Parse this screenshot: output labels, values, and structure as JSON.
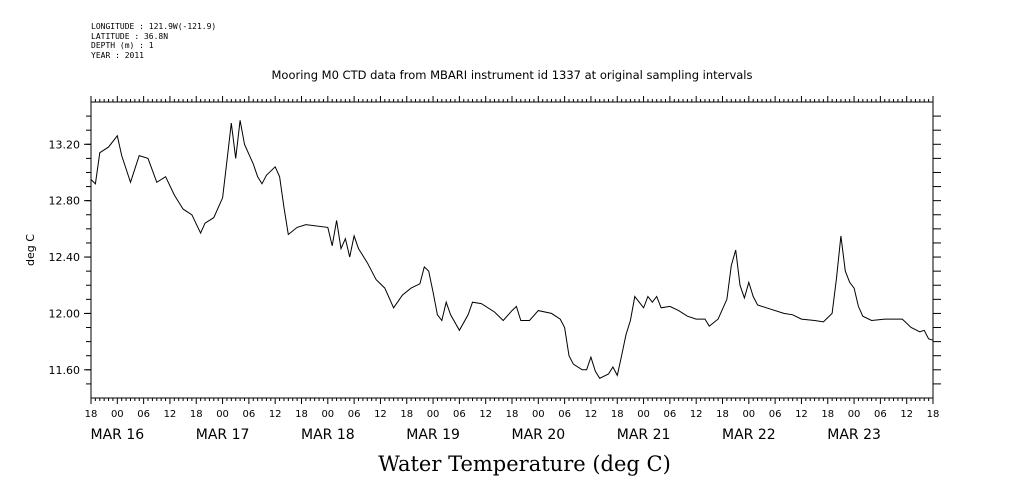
{
  "meta": {
    "longitude": "LONGITUDE : 121.9W(-121.9)",
    "latitude": "LATITUDE : 36.8N",
    "depth": "DEPTH (m) : 1",
    "year": "YEAR : 2011"
  },
  "chart_data": {
    "type": "line",
    "title": "Mooring M0 CTD data from MBARI instrument id 1337 at original sampling intervals",
    "xlabel": "Water Temperature (deg C)",
    "ylabel": "deg C",
    "xlim": [
      "2011-03-15T18:00",
      "2011-03-23T18:00"
    ],
    "ylim": [
      11.4,
      13.5
    ],
    "yticks": [
      "11.60",
      "12.00",
      "12.40",
      "12.80",
      "13.20"
    ],
    "hour_ticks": [
      "18",
      "00",
      "06",
      "12",
      "18",
      "00",
      "06",
      "12",
      "18",
      "00",
      "06",
      "12",
      "18",
      "00",
      "06",
      "12",
      "18",
      "00",
      "06",
      "12",
      "18",
      "00",
      "06",
      "12",
      "18",
      "00",
      "06",
      "12",
      "18",
      "00",
      "06",
      "12",
      "18"
    ],
    "day_labels": [
      {
        "text": "MAR 16",
        "date": "2011-03-16T00:00"
      },
      {
        "text": "MAR 17",
        "date": "2011-03-17T00:00"
      },
      {
        "text": "MAR 18",
        "date": "2011-03-18T00:00"
      },
      {
        "text": "MAR 19",
        "date": "2011-03-19T00:00"
      },
      {
        "text": "MAR 20",
        "date": "2011-03-20T00:00"
      },
      {
        "text": "MAR 21",
        "date": "2011-03-21T00:00"
      },
      {
        "text": "MAR 22",
        "date": "2011-03-22T00:00"
      },
      {
        "text": "MAR 23",
        "date": "2011-03-23T00:00"
      }
    ],
    "grid": false,
    "series": [
      {
        "color": "#000000",
        "points": [
          [
            "2011-03-15T18:00",
            12.95
          ],
          [
            "2011-03-15T19:00",
            12.92
          ],
          [
            "2011-03-15T20:00",
            13.14
          ],
          [
            "2011-03-15T22:00",
            13.18
          ],
          [
            "2011-03-16T00:00",
            13.26
          ],
          [
            "2011-03-16T01:00",
            13.12
          ],
          [
            "2011-03-16T03:00",
            12.93
          ],
          [
            "2011-03-16T05:00",
            13.12
          ],
          [
            "2011-03-16T07:00",
            13.1
          ],
          [
            "2011-03-16T09:00",
            12.93
          ],
          [
            "2011-03-16T11:00",
            12.97
          ],
          [
            "2011-03-16T13:00",
            12.84
          ],
          [
            "2011-03-16T15:00",
            12.74
          ],
          [
            "2011-03-16T17:00",
            12.7
          ],
          [
            "2011-03-16T19:00",
            12.57
          ],
          [
            "2011-03-16T20:00",
            12.64
          ],
          [
            "2011-03-16T22:00",
            12.68
          ],
          [
            "2011-03-17T00:00",
            12.82
          ],
          [
            "2011-03-17T01:00",
            13.08
          ],
          [
            "2011-03-17T02:00",
            13.35
          ],
          [
            "2011-03-17T03:00",
            13.1
          ],
          [
            "2011-03-17T04:00",
            13.37
          ],
          [
            "2011-03-17T05:00",
            13.2
          ],
          [
            "2011-03-17T07:00",
            13.06
          ],
          [
            "2011-03-17T08:00",
            12.97
          ],
          [
            "2011-03-17T09:00",
            12.92
          ],
          [
            "2011-03-17T10:00",
            12.98
          ],
          [
            "2011-03-17T12:00",
            13.04
          ],
          [
            "2011-03-17T13:00",
            12.97
          ],
          [
            "2011-03-17T14:00",
            12.75
          ],
          [
            "2011-03-17T15:00",
            12.56
          ],
          [
            "2011-03-17T17:00",
            12.61
          ],
          [
            "2011-03-17T19:00",
            12.63
          ],
          [
            "2011-03-18T00:00",
            12.61
          ],
          [
            "2011-03-18T01:00",
            12.48
          ],
          [
            "2011-03-18T02:00",
            12.66
          ],
          [
            "2011-03-18T03:00",
            12.46
          ],
          [
            "2011-03-18T04:00",
            12.53
          ],
          [
            "2011-03-18T05:00",
            12.4
          ],
          [
            "2011-03-18T06:00",
            12.55
          ],
          [
            "2011-03-18T07:00",
            12.46
          ],
          [
            "2011-03-18T09:00",
            12.36
          ],
          [
            "2011-03-18T11:00",
            12.24
          ],
          [
            "2011-03-18T13:00",
            12.18
          ],
          [
            "2011-03-18T15:00",
            12.04
          ],
          [
            "2011-03-18T17:00",
            12.13
          ],
          [
            "2011-03-18T19:00",
            12.18
          ],
          [
            "2011-03-18T21:00",
            12.21
          ],
          [
            "2011-03-18T22:00",
            12.33
          ],
          [
            "2011-03-18T23:00",
            12.3
          ],
          [
            "2011-03-19T00:00",
            12.15
          ],
          [
            "2011-03-19T01:00",
            11.99
          ],
          [
            "2011-03-19T02:00",
            11.95
          ],
          [
            "2011-03-19T03:00",
            12.08
          ],
          [
            "2011-03-19T04:00",
            11.99
          ],
          [
            "2011-03-19T06:00",
            11.88
          ],
          [
            "2011-03-19T08:00",
            11.99
          ],
          [
            "2011-03-19T09:00",
            12.08
          ],
          [
            "2011-03-19T11:00",
            12.07
          ],
          [
            "2011-03-19T14:00",
            12.01
          ],
          [
            "2011-03-19T16:00",
            11.95
          ],
          [
            "2011-03-19T18:00",
            12.02
          ],
          [
            "2011-03-19T19:00",
            12.05
          ],
          [
            "2011-03-19T20:00",
            11.95
          ],
          [
            "2011-03-19T22:00",
            11.95
          ],
          [
            "2011-03-20T00:00",
            12.02
          ],
          [
            "2011-03-20T03:00",
            12.0
          ],
          [
            "2011-03-20T05:00",
            11.96
          ],
          [
            "2011-03-20T06:00",
            11.9
          ],
          [
            "2011-03-20T07:00",
            11.7
          ],
          [
            "2011-03-20T08:00",
            11.64
          ],
          [
            "2011-03-20T10:00",
            11.6
          ],
          [
            "2011-03-20T11:00",
            11.6
          ],
          [
            "2011-03-20T12:00",
            11.69
          ],
          [
            "2011-03-20T13:00",
            11.59
          ],
          [
            "2011-03-20T14:00",
            11.54
          ],
          [
            "2011-03-20T16:00",
            11.57
          ],
          [
            "2011-03-20T17:00",
            11.62
          ],
          [
            "2011-03-20T18:00",
            11.56
          ],
          [
            "2011-03-20T19:00",
            11.7
          ],
          [
            "2011-03-20T20:00",
            11.85
          ],
          [
            "2011-03-20T21:00",
            11.95
          ],
          [
            "2011-03-20T22:00",
            12.12
          ],
          [
            "2011-03-20T23:00",
            12.08
          ],
          [
            "2011-03-21T00:00",
            12.04
          ],
          [
            "2011-03-21T01:00",
            12.12
          ],
          [
            "2011-03-21T02:00",
            12.08
          ],
          [
            "2011-03-21T03:00",
            12.12
          ],
          [
            "2011-03-21T04:00",
            12.04
          ],
          [
            "2011-03-21T06:00",
            12.05
          ],
          [
            "2011-03-21T08:00",
            12.02
          ],
          [
            "2011-03-21T10:00",
            11.98
          ],
          [
            "2011-03-21T12:00",
            11.96
          ],
          [
            "2011-03-21T14:00",
            11.96
          ],
          [
            "2011-03-21T15:00",
            11.91
          ],
          [
            "2011-03-21T17:00",
            11.96
          ],
          [
            "2011-03-21T19:00",
            12.1
          ],
          [
            "2011-03-21T20:00",
            12.34
          ],
          [
            "2011-03-21T21:00",
            12.45
          ],
          [
            "2011-03-21T22:00",
            12.2
          ],
          [
            "2011-03-21T23:00",
            12.11
          ],
          [
            "2011-03-22T00:00",
            12.22
          ],
          [
            "2011-03-22T01:00",
            12.12
          ],
          [
            "2011-03-22T02:00",
            12.06
          ],
          [
            "2011-03-22T05:00",
            12.03
          ],
          [
            "2011-03-22T08:00",
            12.0
          ],
          [
            "2011-03-22T10:00",
            11.99
          ],
          [
            "2011-03-22T12:00",
            11.96
          ],
          [
            "2011-03-22T15:00",
            11.95
          ],
          [
            "2011-03-22T17:00",
            11.94
          ],
          [
            "2011-03-22T19:00",
            12.0
          ],
          [
            "2011-03-22T20:00",
            12.25
          ],
          [
            "2011-03-22T21:00",
            12.55
          ],
          [
            "2011-03-22T22:00",
            12.3
          ],
          [
            "2011-03-22T23:00",
            12.22
          ],
          [
            "2011-03-23T00:00",
            12.18
          ],
          [
            "2011-03-23T01:00",
            12.05
          ],
          [
            "2011-03-23T02:00",
            11.98
          ],
          [
            "2011-03-23T04:00",
            11.95
          ],
          [
            "2011-03-23T07:00",
            11.96
          ],
          [
            "2011-03-23T11:00",
            11.96
          ],
          [
            "2011-03-23T13:00",
            11.9
          ],
          [
            "2011-03-23T15:00",
            11.87
          ],
          [
            "2011-03-23T16:00",
            11.88
          ],
          [
            "2011-03-23T17:00",
            11.82
          ],
          [
            "2011-03-23T18:00",
            11.81
          ]
        ]
      }
    ]
  }
}
